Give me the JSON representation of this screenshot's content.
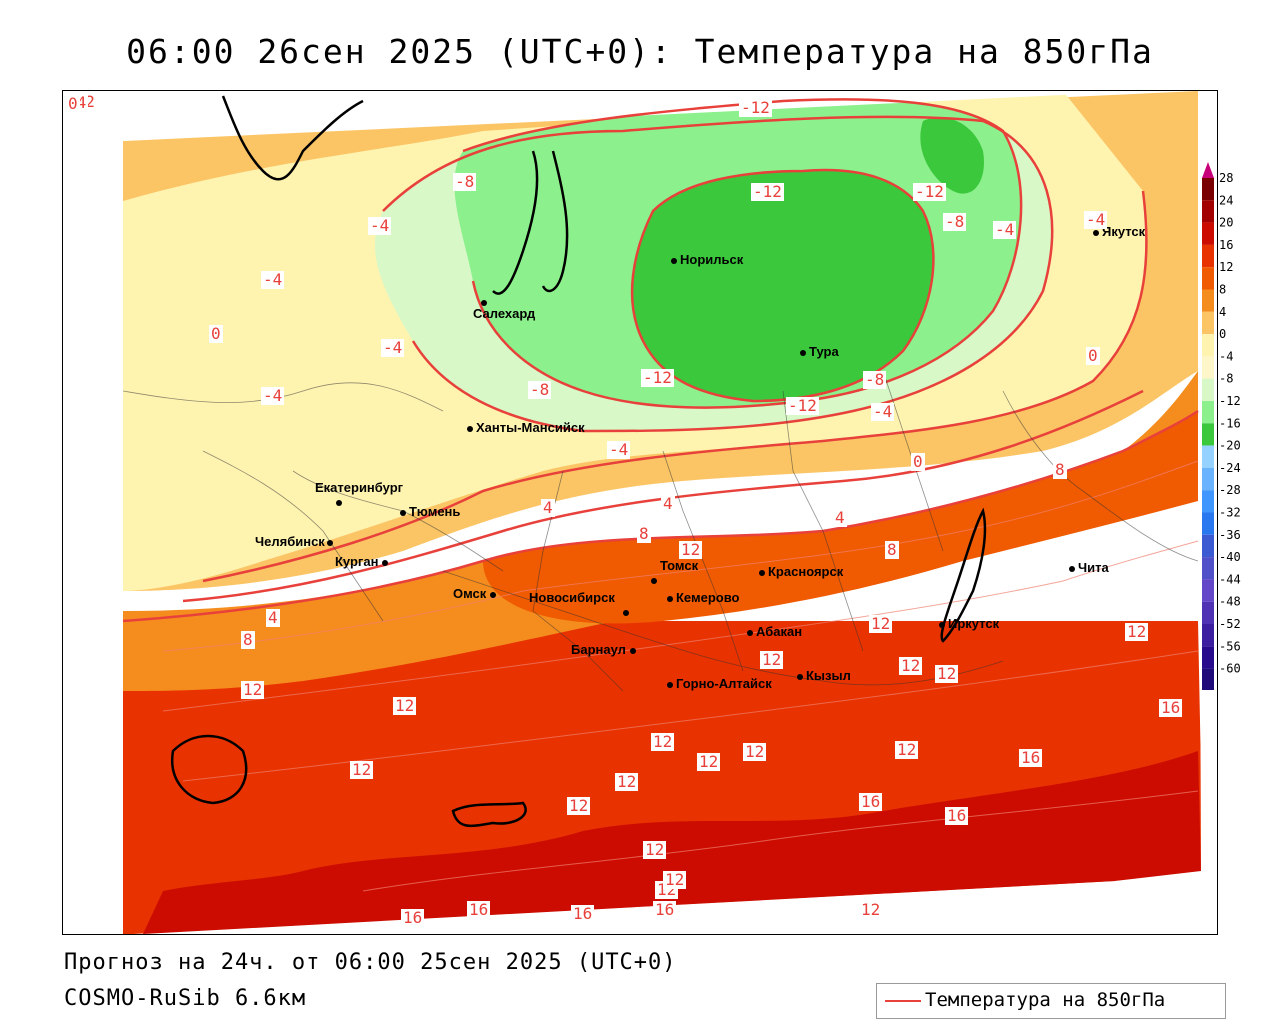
{
  "title": "06:00 26сен 2025 (UTC+0): Температура на 850гПа",
  "forecast_text": "Прогноз на 24ч. от 06:00 25сен 2025 (UTC+0)",
  "model_text": "COSMO-RuSib 6.6км",
  "legend": {
    "label": "Температура на 850гПа",
    "color": "#e8403a"
  },
  "scale": {
    "labels": [
      "28",
      "24",
      "20",
      "16",
      "12",
      "8",
      "4",
      "0",
      "-4",
      "-8",
      "-12",
      "-16",
      "-20",
      "-24",
      "-28",
      "-32",
      "-36",
      "-40",
      "-44",
      "-48",
      "-52",
      "-56",
      "-60"
    ],
    "colors": [
      "#7a0000",
      "#a30000",
      "#cc0c00",
      "#e83200",
      "#f05a00",
      "#f58c1e",
      "#fbc565",
      "#fff3b0",
      "#fcf6c8",
      "#d8f8c8",
      "#8cf08c",
      "#3cc83c",
      "#96d2ff",
      "#6ab4ff",
      "#4096ff",
      "#2a78f0",
      "#3c5ad2",
      "#5050c8",
      "#6446c8",
      "#5032b4",
      "#3c1ea0",
      "#280a8c",
      "#1e0a78"
    ],
    "top_color": "#c8007a",
    "bottom_color": "#a000c8"
  },
  "cities": [
    {
      "name": "Норильск"
    },
    {
      "name": "Салехард"
    },
    {
      "name": "Тура"
    },
    {
      "name": "Якутск"
    },
    {
      "name": "Ханты-Мансийск"
    },
    {
      "name": "Екатеринбург"
    },
    {
      "name": "Тюмень"
    },
    {
      "name": "Челябинск"
    },
    {
      "name": "Курган"
    },
    {
      "name": "Омск"
    },
    {
      "name": "Томск"
    },
    {
      "name": "Новосибирск"
    },
    {
      "name": "Кемерово"
    },
    {
      "name": "Красноярск"
    },
    {
      "name": "Абакан"
    },
    {
      "name": "Барнаул"
    },
    {
      "name": "Горно-Алтайск"
    },
    {
      "name": "Кызыл"
    },
    {
      "name": "Иркутск"
    },
    {
      "name": "Чита"
    }
  ],
  "contour_labels": [
    "-12",
    "-12",
    "-12",
    "-12",
    "-12",
    "-12",
    "-8",
    "-8",
    "-8",
    "-8",
    "-4",
    "-4",
    "-4",
    "-4",
    "-4",
    "-4",
    "-4",
    "-4",
    "-4",
    "0",
    "0",
    "0",
    "0",
    "4",
    "4",
    "4",
    "4",
    "8",
    "8",
    "8",
    "8",
    "12",
    "12",
    "12",
    "12",
    "12",
    "12",
    "12",
    "12",
    "12",
    "12",
    "12",
    "12",
    "12",
    "12",
    "12",
    "12",
    "12",
    "12",
    "12",
    "16",
    "16",
    "16",
    "16",
    "16",
    "16",
    "16",
    "16"
  ]
}
